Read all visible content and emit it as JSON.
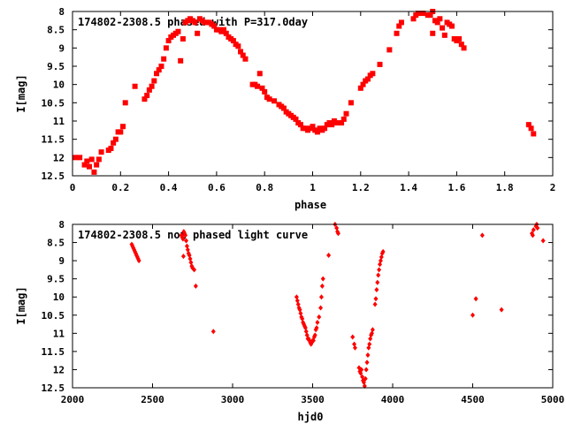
{
  "chart_data": [
    {
      "type": "scatter",
      "title": "174802-2308.5 phased with P=317.0day",
      "xlabel": "phase",
      "ylabel": "I[mag]",
      "xlim": [
        0,
        2
      ],
      "ylim": [
        12.5,
        8
      ],
      "y_inverted": true,
      "xticks": [
        0,
        0.2,
        0.4,
        0.6,
        0.8,
        1,
        1.2,
        1.4,
        1.6,
        1.8,
        2
      ],
      "xtick_labels": [
        "0",
        "0.2",
        "0.4",
        "0.6",
        "0.8",
        "1",
        "1.2",
        "1.4",
        "1.6",
        "1.8",
        "2"
      ],
      "yticks": [
        8,
        8.5,
        9,
        9.5,
        10,
        10.5,
        11,
        11.5,
        12,
        12.5
      ],
      "ytick_labels": [
        "8",
        "8.5",
        "9",
        "9.5",
        "10",
        "10.5",
        "11",
        "11.5",
        "12",
        "12.5"
      ],
      "marker_color": "#ff0000",
      "marker": "filled-square",
      "points": [
        [
          0.01,
          12.0
        ],
        [
          0.03,
          12.0
        ],
        [
          0.05,
          12.2
        ],
        [
          0.06,
          12.1
        ],
        [
          0.07,
          12.25
        ],
        [
          0.08,
          12.05
        ],
        [
          0.09,
          12.4
        ],
        [
          0.1,
          12.2
        ],
        [
          0.11,
          12.05
        ],
        [
          0.12,
          11.85
        ],
        [
          0.15,
          11.8
        ],
        [
          0.16,
          11.75
        ],
        [
          0.17,
          11.6
        ],
        [
          0.18,
          11.5
        ],
        [
          0.19,
          11.3
        ],
        [
          0.2,
          11.3
        ],
        [
          0.21,
          11.15
        ],
        [
          0.22,
          10.5
        ],
        [
          0.26,
          10.05
        ],
        [
          0.3,
          10.4
        ],
        [
          0.31,
          10.3
        ],
        [
          0.32,
          10.15
        ],
        [
          0.33,
          10.05
        ],
        [
          0.34,
          9.9
        ],
        [
          0.35,
          9.7
        ],
        [
          0.36,
          9.6
        ],
        [
          0.37,
          9.5
        ],
        [
          0.38,
          9.3
        ],
        [
          0.39,
          9.0
        ],
        [
          0.4,
          8.8
        ],
        [
          0.41,
          8.7
        ],
        [
          0.42,
          8.65
        ],
        [
          0.43,
          8.6
        ],
        [
          0.44,
          8.55
        ],
        [
          0.45,
          9.35
        ],
        [
          0.46,
          8.75
        ],
        [
          0.47,
          8.3
        ],
        [
          0.48,
          8.25
        ],
        [
          0.49,
          8.2
        ],
        [
          0.5,
          8.25
        ],
        [
          0.51,
          8.3
        ],
        [
          0.52,
          8.6
        ],
        [
          0.53,
          8.2
        ],
        [
          0.54,
          8.25
        ],
        [
          0.55,
          8.3
        ],
        [
          0.56,
          8.3
        ],
        [
          0.57,
          8.3
        ],
        [
          0.58,
          8.35
        ],
        [
          0.59,
          8.4
        ],
        [
          0.6,
          8.5
        ],
        [
          0.61,
          8.5
        ],
        [
          0.62,
          8.55
        ],
        [
          0.63,
          8.5
        ],
        [
          0.64,
          8.6
        ],
        [
          0.65,
          8.7
        ],
        [
          0.66,
          8.75
        ],
        [
          0.67,
          8.8
        ],
        [
          0.68,
          8.9
        ],
        [
          0.69,
          8.95
        ],
        [
          0.7,
          9.1
        ],
        [
          0.71,
          9.2
        ],
        [
          0.72,
          9.3
        ],
        [
          0.75,
          10.0
        ],
        [
          0.76,
          10.0
        ],
        [
          0.77,
          10.05
        ],
        [
          0.78,
          9.7
        ],
        [
          0.79,
          10.1
        ],
        [
          0.8,
          10.2
        ],
        [
          0.81,
          10.35
        ],
        [
          0.82,
          10.4
        ],
        [
          0.84,
          10.45
        ],
        [
          0.86,
          10.55
        ],
        [
          0.87,
          10.6
        ],
        [
          0.88,
          10.65
        ],
        [
          0.89,
          10.75
        ],
        [
          0.9,
          10.8
        ],
        [
          0.91,
          10.85
        ],
        [
          0.92,
          10.9
        ],
        [
          0.93,
          10.95
        ],
        [
          0.94,
          11.05
        ],
        [
          0.95,
          11.1
        ],
        [
          0.96,
          11.2
        ],
        [
          0.97,
          11.2
        ],
        [
          0.98,
          11.25
        ],
        [
          0.99,
          11.2
        ],
        [
          1.0,
          11.15
        ],
        [
          1.01,
          11.25
        ],
        [
          1.02,
          11.3
        ],
        [
          1.03,
          11.2
        ],
        [
          1.04,
          11.25
        ],
        [
          1.05,
          11.2
        ],
        [
          1.06,
          11.1
        ],
        [
          1.07,
          11.05
        ],
        [
          1.08,
          11.1
        ],
        [
          1.09,
          11.0
        ],
        [
          1.1,
          11.05
        ],
        [
          1.12,
          11.05
        ],
        [
          1.13,
          10.95
        ],
        [
          1.14,
          10.8
        ],
        [
          1.16,
          10.5
        ],
        [
          1.2,
          10.1
        ],
        [
          1.21,
          10.0
        ],
        [
          1.22,
          9.9
        ],
        [
          1.23,
          9.85
        ],
        [
          1.24,
          9.75
        ],
        [
          1.25,
          9.7
        ],
        [
          1.28,
          9.45
        ],
        [
          1.32,
          9.05
        ],
        [
          1.35,
          8.6
        ],
        [
          1.36,
          8.4
        ],
        [
          1.37,
          8.3
        ],
        [
          1.42,
          8.2
        ],
        [
          1.43,
          8.1
        ],
        [
          1.44,
          8.05
        ],
        [
          1.46,
          8.05
        ],
        [
          1.48,
          8.1
        ],
        [
          1.49,
          8.1
        ],
        [
          1.5,
          8.0
        ],
        [
          1.5,
          8.6
        ],
        [
          1.51,
          8.25
        ],
        [
          1.52,
          8.3
        ],
        [
          1.53,
          8.2
        ],
        [
          1.54,
          8.45
        ],
        [
          1.55,
          8.65
        ],
        [
          1.56,
          8.3
        ],
        [
          1.57,
          8.35
        ],
        [
          1.58,
          8.4
        ],
        [
          1.59,
          8.75
        ],
        [
          1.6,
          8.8
        ],
        [
          1.61,
          8.75
        ],
        [
          1.62,
          8.9
        ],
        [
          1.63,
          9.0
        ],
        [
          1.9,
          11.1
        ],
        [
          1.91,
          11.2
        ],
        [
          1.92,
          11.35
        ]
      ]
    },
    {
      "type": "scatter",
      "title": "174802-2308.5 not phased light curve",
      "xlabel": "hjd0",
      "ylabel": "I[mag]",
      "xlim": [
        2000,
        5000
      ],
      "ylim": [
        12.5,
        8
      ],
      "y_inverted": true,
      "xticks": [
        2000,
        2500,
        3000,
        3500,
        4000,
        4500,
        5000
      ],
      "xtick_labels": [
        "2000",
        "2500",
        "3000",
        "3500",
        "4000",
        "4500",
        "5000"
      ],
      "yticks": [
        8,
        8.5,
        9,
        9.5,
        10,
        10.5,
        11,
        11.5,
        12,
        12.5
      ],
      "ytick_labels": [
        "8",
        "8.5",
        "9",
        "9.5",
        "10",
        "10.5",
        "11",
        "11.5",
        "12",
        "12.5"
      ],
      "marker_color": "#ff0000",
      "marker": "filled-diamond",
      "points": [
        [
          2370,
          8.55
        ],
        [
          2375,
          8.6
        ],
        [
          2380,
          8.65
        ],
        [
          2385,
          8.7
        ],
        [
          2390,
          8.75
        ],
        [
          2395,
          8.8
        ],
        [
          2400,
          8.85
        ],
        [
          2405,
          8.9
        ],
        [
          2410,
          8.95
        ],
        [
          2415,
          9.0
        ],
        [
          2680,
          8.3
        ],
        [
          2685,
          8.35
        ],
        [
          2690,
          8.4
        ],
        [
          2693,
          8.88
        ],
        [
          2695,
          8.2
        ],
        [
          2700,
          8.25
        ],
        [
          2705,
          8.3
        ],
        [
          2710,
          8.45
        ],
        [
          2715,
          8.6
        ],
        [
          2720,
          8.7
        ],
        [
          2725,
          8.8
        ],
        [
          2730,
          8.85
        ],
        [
          2735,
          8.95
        ],
        [
          2740,
          9.05
        ],
        [
          2745,
          9.15
        ],
        [
          2750,
          9.2
        ],
        [
          2760,
          9.25
        ],
        [
          2770,
          9.7
        ],
        [
          2880,
          10.95
        ],
        [
          3400,
          10.0
        ],
        [
          3405,
          10.1
        ],
        [
          3410,
          10.2
        ],
        [
          3415,
          10.3
        ],
        [
          3420,
          10.35
        ],
        [
          3425,
          10.45
        ],
        [
          3430,
          10.55
        ],
        [
          3435,
          10.6
        ],
        [
          3440,
          10.7
        ],
        [
          3445,
          10.75
        ],
        [
          3450,
          10.8
        ],
        [
          3455,
          10.85
        ],
        [
          3460,
          10.95
        ],
        [
          3465,
          11.05
        ],
        [
          3470,
          11.15
        ],
        [
          3475,
          11.15
        ],
        [
          3480,
          11.2
        ],
        [
          3485,
          11.25
        ],
        [
          3490,
          11.3
        ],
        [
          3495,
          11.25
        ],
        [
          3500,
          11.2
        ],
        [
          3505,
          11.2
        ],
        [
          3510,
          11.1
        ],
        [
          3515,
          11.05
        ],
        [
          3520,
          10.9
        ],
        [
          3525,
          10.85
        ],
        [
          3530,
          10.7
        ],
        [
          3540,
          10.55
        ],
        [
          3550,
          10.3
        ],
        [
          3555,
          10.0
        ],
        [
          3560,
          9.7
        ],
        [
          3565,
          9.5
        ],
        [
          3600,
          8.85
        ],
        [
          3640,
          8.0
        ],
        [
          3650,
          8.1
        ],
        [
          3655,
          8.2
        ],
        [
          3660,
          8.25
        ],
        [
          3750,
          11.1
        ],
        [
          3760,
          11.3
        ],
        [
          3765,
          11.4
        ],
        [
          3790,
          11.95
        ],
        [
          3795,
          12.05
        ],
        [
          3800,
          12.1
        ],
        [
          3805,
          12.0
        ],
        [
          3810,
          12.2
        ],
        [
          3815,
          12.3
        ],
        [
          3820,
          12.35
        ],
        [
          3825,
          12.45
        ],
        [
          3830,
          12.25
        ],
        [
          3835,
          12.0
        ],
        [
          3840,
          11.8
        ],
        [
          3845,
          11.6
        ],
        [
          3850,
          11.4
        ],
        [
          3855,
          11.3
        ],
        [
          3860,
          11.15
        ],
        [
          3865,
          11.05
        ],
        [
          3870,
          11.0
        ],
        [
          3875,
          10.9
        ],
        [
          3890,
          10.2
        ],
        [
          3895,
          10.05
        ],
        [
          3900,
          9.8
        ],
        [
          3905,
          9.6
        ],
        [
          3910,
          9.4
        ],
        [
          3915,
          9.25
        ],
        [
          3920,
          9.1
        ],
        [
          3925,
          9.0
        ],
        [
          3930,
          8.9
        ],
        [
          3935,
          8.8
        ],
        [
          3940,
          8.75
        ],
        [
          4500,
          10.5
        ],
        [
          4520,
          10.05
        ],
        [
          4560,
          8.3
        ],
        [
          4680,
          10.35
        ],
        [
          4870,
          8.25
        ],
        [
          4875,
          8.3
        ],
        [
          4880,
          8.15
        ],
        [
          4895,
          8.05
        ],
        [
          4900,
          8.0
        ],
        [
          4905,
          8.1
        ],
        [
          4940,
          8.45
        ]
      ]
    }
  ]
}
